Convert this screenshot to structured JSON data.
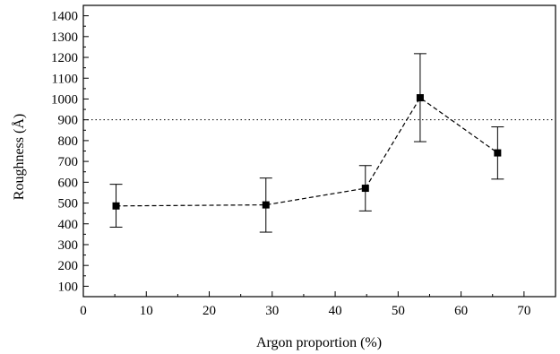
{
  "chart_data": {
    "type": "scatter",
    "title": "",
    "xlabel": "Argon proportion (%)",
    "ylabel": "Roughness (Å)",
    "xlim": [
      0,
      75
    ],
    "ylim": [
      50,
      1450
    ],
    "xticks": [
      0,
      10,
      20,
      30,
      40,
      50,
      60,
      70
    ],
    "yticks": [
      100,
      200,
      300,
      400,
      500,
      600,
      700,
      800,
      900,
      1000,
      1100,
      1200,
      1300,
      1400
    ],
    "grid": false,
    "legend": "none",
    "series": [
      {
        "points": [
          {
            "x": 5.2,
            "y": 486,
            "y_low": 384,
            "y_high": 590
          },
          {
            "x": 29.0,
            "y": 491,
            "y_low": 360,
            "y_high": 620
          },
          {
            "x": 44.8,
            "y": 571,
            "y_low": 462,
            "y_high": 680
          },
          {
            "x": 53.5,
            "y": 1006,
            "y_low": 795,
            "y_high": 1218
          },
          {
            "x": 65.8,
            "y": 741,
            "y_low": 615,
            "y_high": 866
          }
        ],
        "line_style": "dashed",
        "marker": "square",
        "color": "#000000"
      }
    ],
    "reference_lines": [
      {
        "axis": "y",
        "value": 900,
        "line_style": "dotted"
      }
    ]
  }
}
